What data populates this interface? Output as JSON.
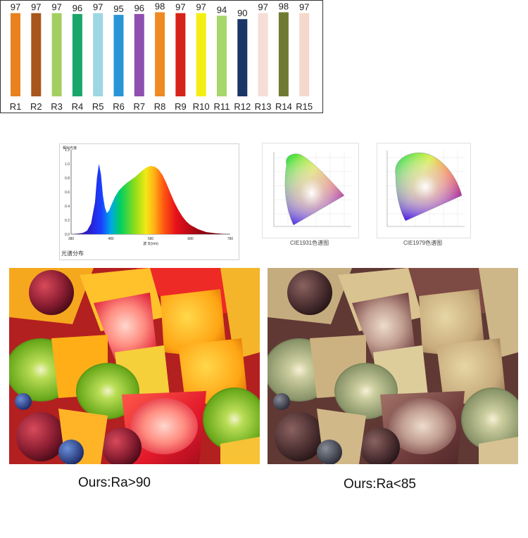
{
  "chart_data": [
    {
      "type": "bar",
      "title": "",
      "categories": [
        "R1",
        "R2",
        "R3",
        "R4",
        "R5",
        "R6",
        "R7",
        "R8",
        "R9",
        "R10",
        "R11",
        "R12",
        "R13",
        "R14",
        "R15"
      ],
      "values": [
        97,
        97,
        97,
        96,
        97,
        95,
        96,
        98,
        97,
        97,
        94,
        90,
        97,
        98,
        97
      ],
      "colors": [
        "#e8821e",
        "#a8561c",
        "#a3cf62",
        "#1aa66a",
        "#9fd6e3",
        "#2a95d6",
        "#8e4fb0",
        "#ef8a22",
        "#d62318",
        "#f5ee13",
        "#a6d76a",
        "#1a3566",
        "#f6ddd6",
        "#6f7a30",
        "#f5d8cc"
      ],
      "ylim": [
        0,
        100
      ]
    },
    {
      "type": "area",
      "title": "相对光谱",
      "xlabel": "波 长(nm)",
      "caption": "光谱分布",
      "x": [
        380,
        400,
        410,
        420,
        430,
        440,
        445,
        450,
        455,
        460,
        465,
        470,
        475,
        480,
        490,
        500,
        510,
        520,
        530,
        540,
        550,
        560,
        570,
        580,
        590,
        600,
        610,
        620,
        630,
        640,
        650,
        660,
        670,
        680,
        700,
        720,
        740,
        760,
        780
      ],
      "y": [
        0.0,
        0.01,
        0.02,
        0.05,
        0.15,
        0.45,
        0.8,
        1.0,
        0.85,
        0.55,
        0.38,
        0.3,
        0.33,
        0.4,
        0.53,
        0.62,
        0.68,
        0.73,
        0.77,
        0.81,
        0.86,
        0.91,
        0.95,
        0.97,
        0.96,
        0.92,
        0.84,
        0.72,
        0.58,
        0.45,
        0.34,
        0.25,
        0.18,
        0.13,
        0.07,
        0.03,
        0.015,
        0.005,
        0.0
      ],
      "xticks": [
        "380",
        "480",
        "580",
        "680",
        "780"
      ],
      "yticks": [
        "0.0",
        "0.2",
        "0.4",
        "0.6",
        "0.8",
        "1.0",
        "1.2"
      ],
      "xlim": [
        380,
        780
      ],
      "ylim": [
        0,
        1.2
      ]
    }
  ],
  "cie1931": {
    "caption": "CIE1931色谱图"
  },
  "cie1979": {
    "caption": "CIE1979色谱图"
  },
  "photos": {
    "left_caption": "Ours:Ra>90",
    "right_caption": "Ours:Ra<85"
  }
}
